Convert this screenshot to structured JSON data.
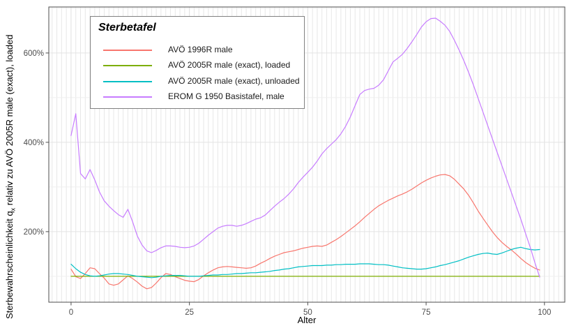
{
  "chart_data": {
    "type": "line",
    "legend_title": "Sterbetafel",
    "xlabel": "Alter",
    "ylabel_prefix": "Sterbewahrscheinlichkeit  q",
    "ylabel_subscript": "x",
    "ylabel_suffix": " relativ zu AVÖ 2005R male (exact), loaded",
    "xlim": [
      -4.7,
      104.3
    ],
    "ylim": [
      42,
      703
    ],
    "x_axis": {
      "ticks": [
        {
          "value": 0,
          "label": "0"
        },
        {
          "value": 25,
          "label": "25"
        },
        {
          "value": 50,
          "label": "50"
        },
        {
          "value": 75,
          "label": "75"
        },
        {
          "value": 100,
          "label": "100"
        }
      ],
      "minor_step": 1
    },
    "y_axis": {
      "ticks": [
        {
          "value": 200,
          "label": "200%"
        },
        {
          "value": 400,
          "label": "400%"
        },
        {
          "value": 600,
          "label": "600%"
        }
      ],
      "minor_values": [
        100,
        300,
        500,
        700
      ]
    },
    "x_start": 0,
    "x_step": 1,
    "grid": "on",
    "legend_position": "inside-top-left",
    "series": [
      {
        "name": "AVÖ 1996R male",
        "color": "#F8766D",
        "values": [
          116,
          99,
          95,
          106,
          119,
          117,
          106,
          96,
          83,
          80,
          83,
          92,
          101,
          95,
          87,
          78,
          72,
          75,
          85,
          97,
          106,
          104,
          99,
          95,
          91,
          89,
          88,
          93,
          101,
          108,
          114,
          119,
          121,
          122,
          121,
          120,
          119,
          118,
          119,
          123,
          129,
          134,
          140,
          145,
          149,
          153,
          155,
          157,
          160,
          163,
          165,
          167,
          168,
          167,
          170,
          176,
          182,
          189,
          197,
          205,
          213,
          222,
          232,
          241,
          250,
          258,
          264,
          270,
          275,
          280,
          284,
          289,
          295,
          302,
          309,
          315,
          320,
          324,
          327,
          328,
          325,
          317,
          306,
          295,
          281,
          264,
          246,
          230,
          215,
          200,
          187,
          176,
          167,
          159,
          150,
          140,
          131,
          124,
          118,
          114
        ]
      },
      {
        "name": "AVÖ 2005R male (exact), loaded",
        "color": "#7CAE00",
        "constant_value": 100,
        "points": 100
      },
      {
        "name": "AVÖ 2005R male (exact), unloaded",
        "color": "#00BFC4",
        "values": [
          127,
          117,
          109,
          104,
          101,
          100,
          101,
          103,
          105,
          106,
          106,
          105,
          104,
          102,
          100,
          99,
          98,
          97,
          98,
          100,
          101,
          102,
          102,
          102,
          101,
          100,
          100,
          100,
          101,
          102,
          103,
          103,
          104,
          104,
          105,
          106,
          106,
          107,
          108,
          108,
          109,
          110,
          111,
          113,
          114,
          116,
          117,
          119,
          121,
          122,
          123,
          124,
          124,
          124,
          125,
          125,
          126,
          126,
          127,
          127,
          127,
          128,
          128,
          128,
          127,
          126,
          126,
          125,
          123,
          121,
          119,
          118,
          117,
          116,
          116,
          117,
          119,
          121,
          124,
          126,
          129,
          132,
          135,
          139,
          143,
          146,
          149,
          151,
          152,
          150,
          149,
          152,
          156,
          160,
          163,
          165,
          162,
          160,
          159,
          160
        ]
      },
      {
        "name": "EROM G 1950 Basistafel, male",
        "color": "#C77CFF",
        "values": [
          415,
          464,
          330,
          318,
          339,
          316,
          289,
          269,
          257,
          247,
          238,
          232,
          250,
          222,
          190,
          170,
          157,
          153,
          158,
          164,
          168,
          168,
          167,
          165,
          164,
          165,
          168,
          174,
          183,
          192,
          200,
          208,
          212,
          214,
          214,
          212,
          214,
          218,
          223,
          228,
          231,
          237,
          247,
          257,
          266,
          274,
          284,
          296,
          310,
          322,
          333,
          344,
          358,
          374,
          386,
          396,
          406,
          419,
          436,
          457,
          482,
          507,
          516,
          519,
          521,
          528,
          540,
          560,
          580,
          588,
          597,
          610,
          625,
          641,
          658,
          670,
          677,
          678,
          671,
          662,
          648,
          628,
          606,
          582,
          556,
          528,
          498,
          468,
          438,
          408,
          378,
          348,
          318,
          288,
          258,
          228,
          196,
          165,
          130,
          98
        ]
      }
    ]
  },
  "colors": {
    "background": "#ffffff",
    "panel_border": "#4d4d4d",
    "grid_major": "#e3e3e3",
    "grid_minor_v": "#e7e7e7",
    "grid_minor_h": "#efefef",
    "tick": "#4d4d4d",
    "tick_label": "#4d4d4d"
  }
}
